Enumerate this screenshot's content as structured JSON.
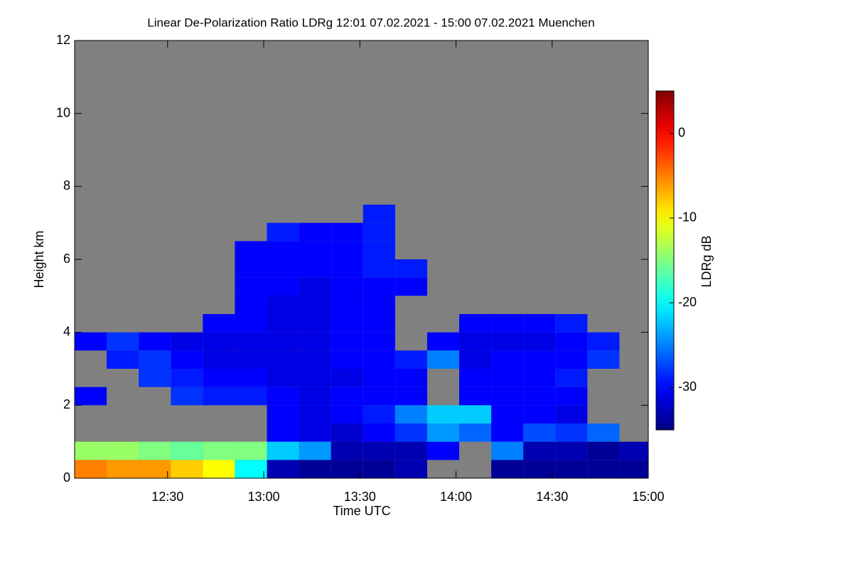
{
  "chart_data": {
    "type": "heatmap",
    "title": "Linear De-Polarization Ratio LDRg   12:01 07.02.2021 - 15:00 07.02.2021 Muenchen",
    "xlabel": "Time UTC",
    "ylabel": "Height km",
    "colorbar_label": "LDRg dB",
    "x": [
      "12:06",
      "12:16",
      "12:26",
      "12:36",
      "12:46",
      "12:56",
      "13:06",
      "13:16",
      "13:26",
      "13:36",
      "13:46",
      "13:56",
      "14:06",
      "14:16",
      "14:26",
      "14:36",
      "14:46",
      "14:56"
    ],
    "y": [
      7.25,
      6.75,
      6.25,
      5.75,
      5.25,
      4.75,
      4.25,
      3.75,
      3.25,
      2.75,
      2.25,
      1.75,
      1.25,
      0.75,
      0.25
    ],
    "z": [
      [
        null,
        null,
        null,
        null,
        null,
        null,
        null,
        null,
        null,
        -29,
        null,
        null,
        null,
        null,
        null,
        null,
        null,
        null
      ],
      [
        null,
        null,
        null,
        null,
        null,
        null,
        -29,
        -30,
        -30,
        -29,
        null,
        null,
        null,
        null,
        null,
        null,
        null,
        null
      ],
      [
        null,
        null,
        null,
        null,
        null,
        -30,
        -30,
        -30,
        -30,
        -29,
        null,
        null,
        null,
        null,
        null,
        null,
        null,
        null
      ],
      [
        null,
        null,
        null,
        null,
        null,
        -30,
        -30,
        -30,
        -30,
        -29,
        -29,
        null,
        null,
        null,
        null,
        null,
        null,
        null
      ],
      [
        null,
        null,
        null,
        null,
        null,
        -30,
        -30,
        -31,
        -30,
        -30,
        -30,
        null,
        null,
        null,
        null,
        null,
        null,
        null
      ],
      [
        null,
        null,
        null,
        null,
        null,
        -30,
        -31,
        -31,
        -30,
        -30,
        null,
        null,
        null,
        null,
        null,
        null,
        null,
        null
      ],
      [
        null,
        null,
        null,
        null,
        -30,
        -30,
        -31,
        -31,
        -30,
        -30,
        null,
        null,
        -30,
        -30,
        -30,
        -29,
        null,
        null
      ],
      [
        -30,
        -28,
        -30,
        -31,
        -31,
        -31,
        -31,
        -31,
        -30,
        -30,
        null,
        -30,
        -31,
        -31,
        -31,
        -30,
        -29,
        null
      ],
      [
        null,
        -29,
        -28,
        -30,
        -31,
        -31,
        -31,
        -31,
        -30,
        -30,
        -29,
        -25,
        -31,
        -30,
        -30,
        -30,
        -28,
        null
      ],
      [
        null,
        null,
        -28,
        -29,
        -30,
        -30,
        -31,
        -31,
        -31,
        -30,
        -30,
        null,
        -30,
        -30,
        -30,
        -29,
        null,
        null
      ],
      [
        -30,
        null,
        null,
        -28,
        -29,
        -29,
        -30,
        -31,
        -30,
        -30,
        -30,
        null,
        -30,
        -30,
        -30,
        -30,
        null,
        null
      ],
      [
        null,
        null,
        null,
        null,
        null,
        null,
        -30,
        -31,
        -30,
        -29,
        -25,
        -22,
        -22,
        -30,
        -30,
        -31,
        null,
        null
      ],
      [
        null,
        null,
        null,
        null,
        null,
        null,
        -30,
        -31,
        -32,
        -30,
        -28,
        -24,
        -26,
        -30,
        -27,
        -28,
        -26,
        null
      ],
      [
        -14,
        -14,
        -15,
        -16,
        -15,
        -15,
        -22,
        -24,
        -33,
        -33,
        -33,
        -30,
        null,
        -25,
        -33,
        -33,
        -34,
        -33
      ],
      [
        -5,
        -6,
        -6,
        -8,
        -10,
        -20,
        -33,
        -34,
        -34,
        -34,
        -33,
        null,
        null,
        -34,
        -34,
        -34,
        -34,
        -34
      ]
    ],
    "xlim": [
      "12:01",
      "15:00"
    ],
    "xticks": [
      "12:30",
      "13:00",
      "13:30",
      "14:00",
      "14:30",
      "15:00"
    ],
    "ylim": [
      0,
      12
    ],
    "yticks": [
      0,
      2,
      4,
      6,
      8,
      10,
      12
    ],
    "zlim": [
      -35,
      5
    ],
    "zticks": [
      0,
      -10,
      -20,
      -30
    ],
    "colormap": "jet",
    "background": "#808080"
  }
}
